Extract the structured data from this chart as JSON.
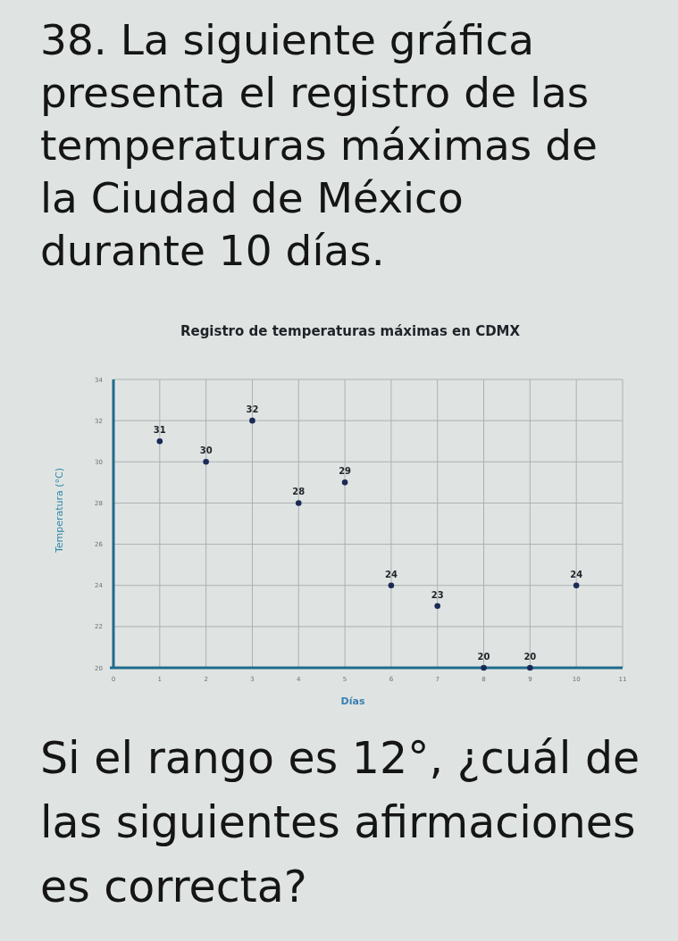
{
  "chart_data": {
    "type": "scatter",
    "title": "Registro de temperaturas máximas en CDMX",
    "xlabel": "Días",
    "ylabel": "Temperatura (°C)",
    "annotations": [
      "38. La siguiente gráfica presenta el registro de las temperaturas máximas de la Ciudad de México durante 10 días.",
      "Si el rango es 12°, ¿cuál de las siguientes afirmaciones es correcta?"
    ],
    "x": [
      1,
      2,
      3,
      4,
      5,
      6,
      7,
      8,
      9,
      10
    ],
    "values": [
      31,
      30,
      32,
      28,
      29,
      24,
      23,
      20,
      20,
      24
    ],
    "color": "#1b2a55",
    "xlim": [
      0,
      11
    ],
    "xticks": [
      0,
      1,
      2,
      3,
      4,
      5,
      6,
      7,
      8,
      9,
      10,
      11
    ],
    "ylim": [
      20,
      34
    ],
    "yticks": [
      20,
      22,
      24,
      26,
      28,
      30,
      32,
      34
    ],
    "grid": true,
    "data_labels": true,
    "marker": "circle"
  }
}
